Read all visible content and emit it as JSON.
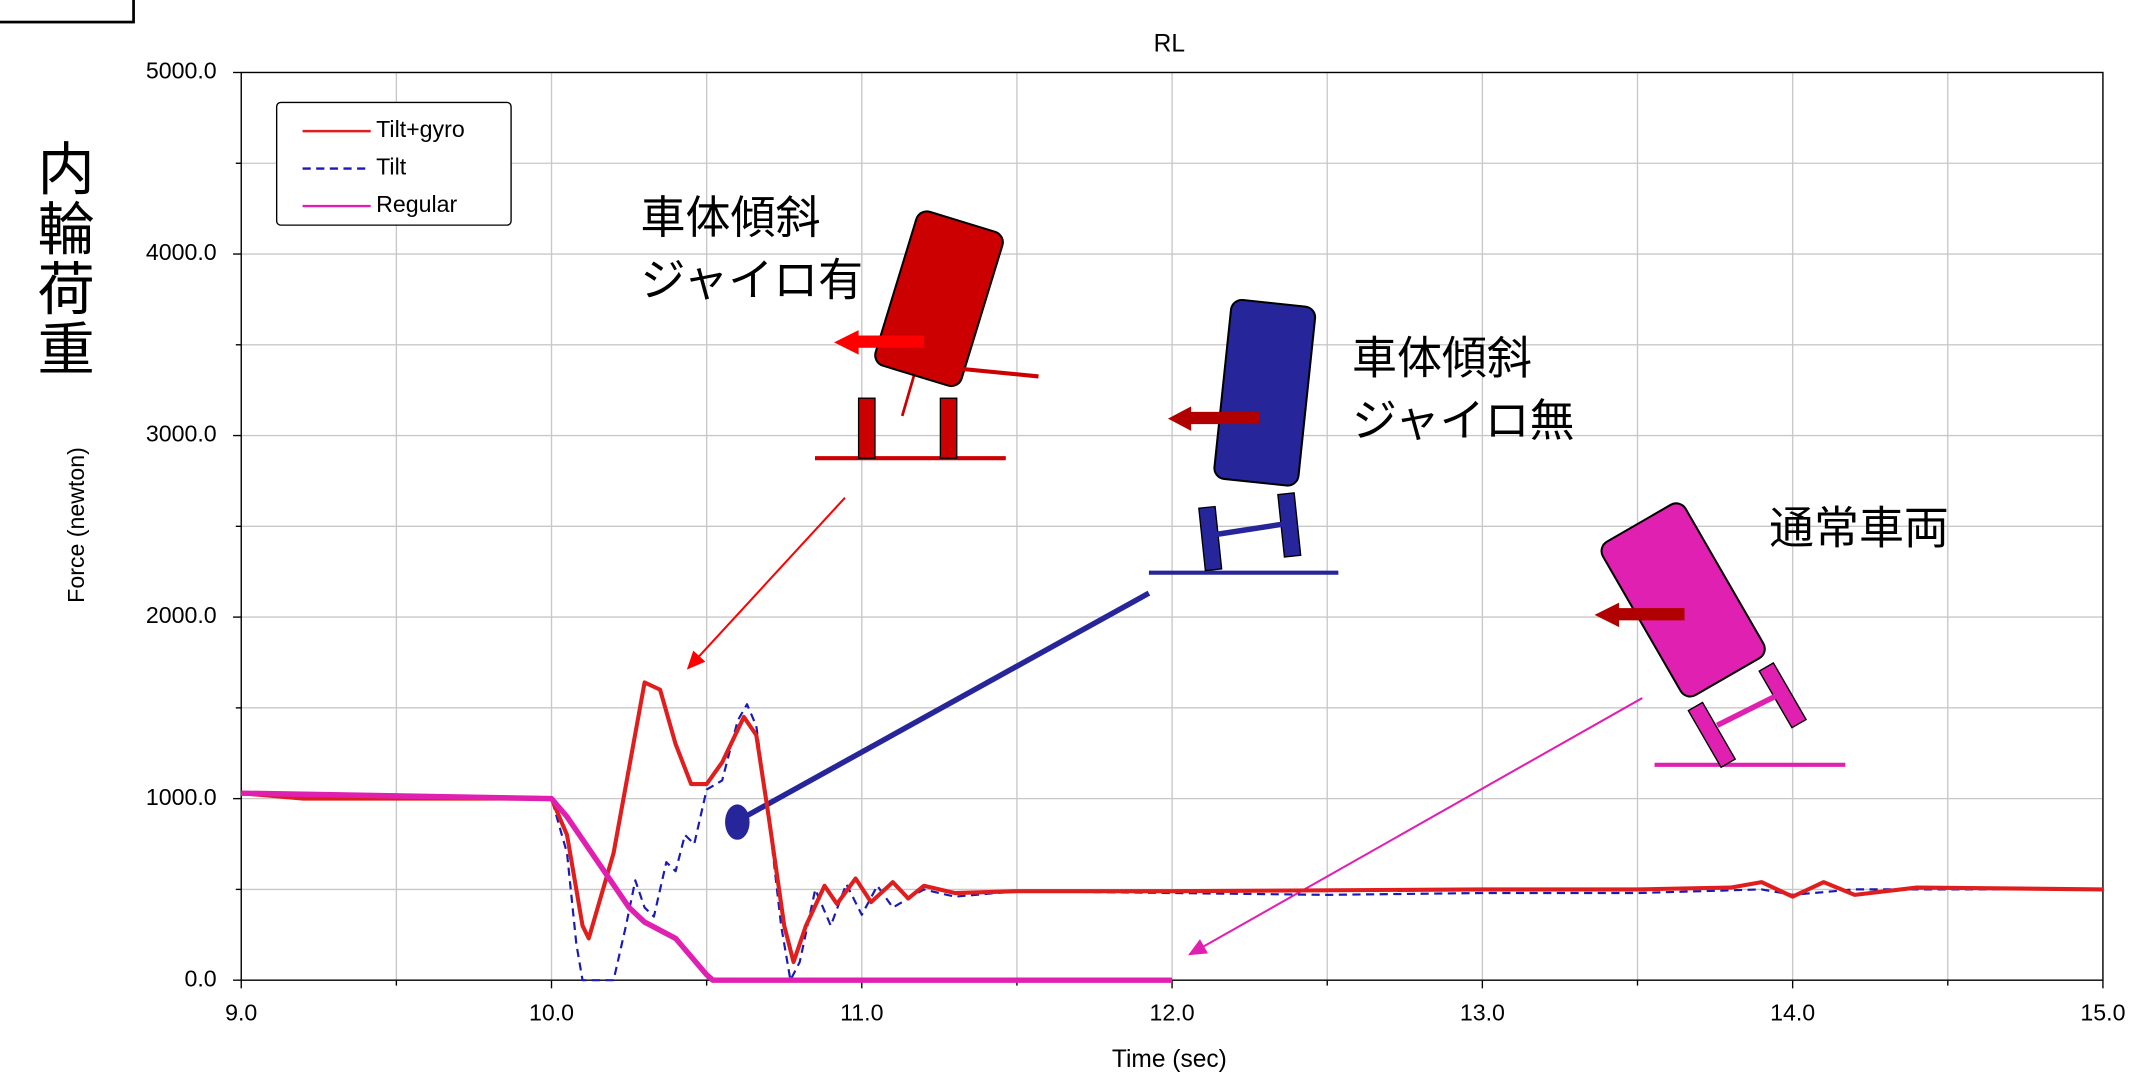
{
  "chart_data": {
    "type": "line",
    "title": "RL",
    "x_label": "Time (sec)",
    "y_label": "Force (newton)",
    "y_label_jp": "内輪荷重",
    "xlim": [
      9,
      15
    ],
    "ylim": [
      0,
      5000
    ],
    "xticks": [
      {
        "value": 9,
        "label": "9.0"
      },
      {
        "value": 10,
        "label": "10.0"
      },
      {
        "value": 11,
        "label": "11.0"
      },
      {
        "value": 12,
        "label": "12.0"
      },
      {
        "value": 13,
        "label": "13.0"
      },
      {
        "value": 14,
        "label": "14.0"
      },
      {
        "value": 15,
        "label": "15.0"
      }
    ],
    "minor_xticks": [
      9.5,
      10.5,
      11.5,
      12.5,
      13.5,
      14.5
    ],
    "yticks": [
      {
        "value": 0,
        "label": "0.0"
      },
      {
        "value": 1000,
        "label": "1000.0"
      },
      {
        "value": 2000,
        "label": "2000.0"
      },
      {
        "value": 3000,
        "label": "3000.0"
      },
      {
        "value": 4000,
        "label": "4000.0"
      },
      {
        "value": 5000,
        "label": "5000.0"
      }
    ],
    "minor_yticks": [
      500,
      1500,
      2500,
      3500,
      4500
    ],
    "grid": true,
    "legend": "upper left",
    "series": [
      {
        "name": "Tilt+gyro",
        "color": "#e01e1e",
        "dashed": false,
        "x": [
          9.0,
          9.2,
          10.0,
          10.05,
          10.1,
          10.12,
          10.2,
          10.3,
          10.35,
          10.4,
          10.45,
          10.5,
          10.55,
          10.62,
          10.66,
          10.7,
          10.75,
          10.78,
          10.82,
          10.88,
          10.92,
          10.98,
          11.03,
          11.1,
          11.15,
          11.2,
          11.3,
          11.5,
          12.0,
          13.0,
          13.5,
          13.8,
          13.9,
          14.0,
          14.1,
          14.2,
          14.4,
          15.0
        ],
        "values": [
          1030,
          1000,
          1000,
          800,
          300,
          230,
          700,
          1640,
          1600,
          1300,
          1080,
          1080,
          1200,
          1450,
          1350,
          900,
          300,
          100,
          300,
          520,
          420,
          560,
          430,
          540,
          450,
          520,
          480,
          490,
          490,
          500,
          500,
          510,
          540,
          460,
          540,
          470,
          510,
          500
        ]
      },
      {
        "name": "Tilt",
        "color": "#1a1ab4",
        "dashed": true,
        "x": [
          9.0,
          10.0,
          10.05,
          10.08,
          10.1,
          10.2,
          10.24,
          10.27,
          10.3,
          10.33,
          10.37,
          10.4,
          10.43,
          10.46,
          10.5,
          10.55,
          10.6,
          10.63,
          10.66,
          10.7,
          10.74,
          10.77,
          10.8,
          10.85,
          10.9,
          10.95,
          11.0,
          11.05,
          11.1,
          11.2,
          11.3,
          11.5,
          12.0,
          12.5,
          13.0,
          13.5,
          13.9,
          14.0,
          14.2,
          15.0
        ],
        "values": [
          1030,
          1000,
          700,
          200,
          0,
          0,
          300,
          550,
          400,
          350,
          650,
          600,
          800,
          750,
          1050,
          1100,
          1430,
          1520,
          1400,
          900,
          300,
          0,
          100,
          500,
          300,
          530,
          360,
          520,
          400,
          500,
          460,
          490,
          480,
          470,
          480,
          480,
          500,
          470,
          500,
          500
        ]
      },
      {
        "name": "Regular",
        "color": "#e020b0",
        "dashed": false,
        "x": [
          9.0,
          10.0,
          10.05,
          10.15,
          10.25,
          10.3,
          10.4,
          10.5,
          10.52,
          12.0
        ],
        "values": [
          1030,
          1000,
          900,
          650,
          400,
          320,
          230,
          30,
          0,
          0
        ]
      }
    ],
    "annotations": [
      {
        "lines": [
          "車体傾斜",
          "ジャイロ有"
        ],
        "color": "#ff0000"
      },
      {
        "lines": [
          "車体傾斜",
          "ジャイロ無"
        ],
        "color": "#1a1a9c"
      },
      {
        "lines": [
          "通常車両"
        ],
        "color": "#e020b0"
      }
    ]
  }
}
